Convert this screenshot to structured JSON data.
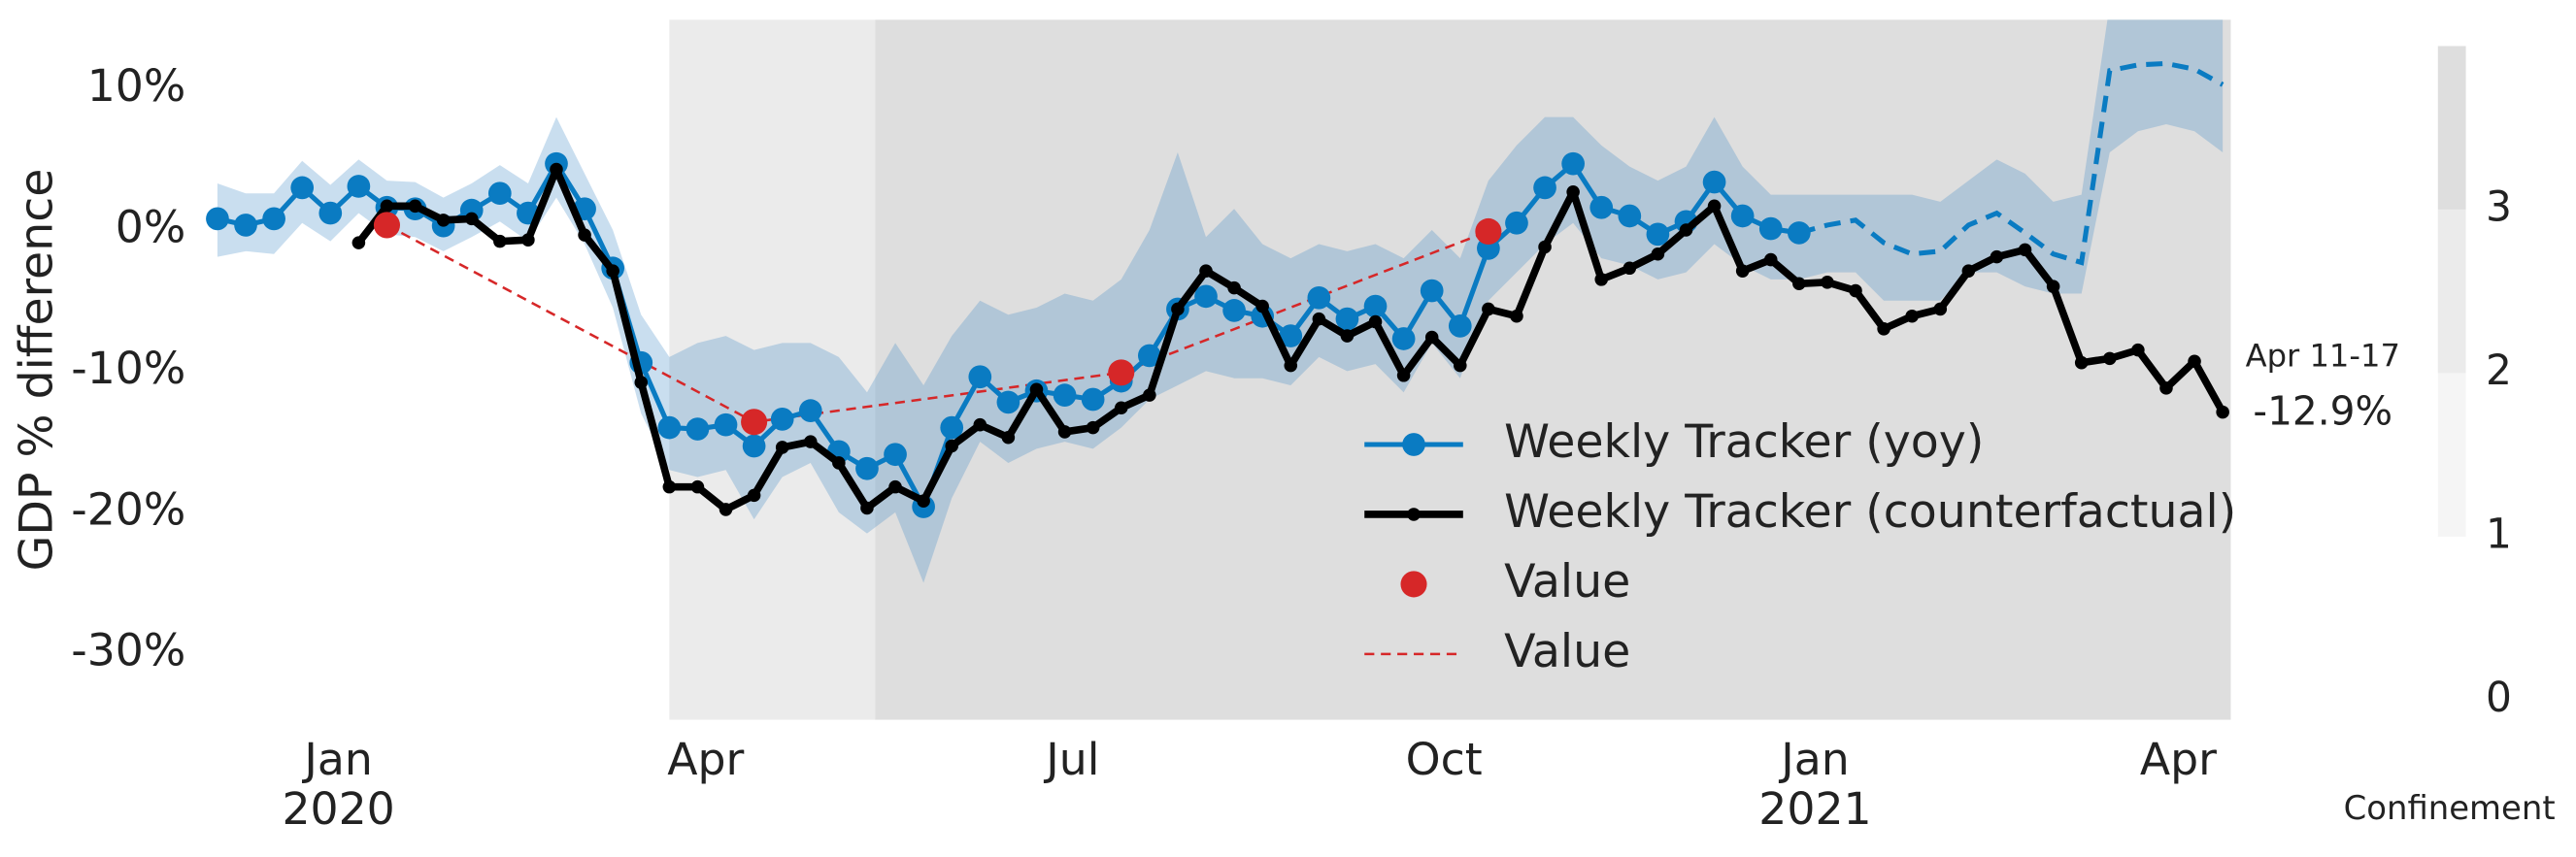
{
  "chart_data": {
    "type": "line",
    "ylabel": "GDP % difference",
    "x": [
      "2019-12-02",
      "2019-12-09",
      "2019-12-16",
      "2019-12-23",
      "2019-12-30",
      "2020-01-06",
      "2020-01-13",
      "2020-01-20",
      "2020-01-27",
      "2020-02-03",
      "2020-02-10",
      "2020-02-17",
      "2020-02-24",
      "2020-03-02",
      "2020-03-09",
      "2020-03-16",
      "2020-03-23",
      "2020-03-30",
      "2020-04-06",
      "2020-04-13",
      "2020-04-20",
      "2020-04-27",
      "2020-05-04",
      "2020-05-11",
      "2020-05-18",
      "2020-05-25",
      "2020-06-01",
      "2020-06-08",
      "2020-06-15",
      "2020-06-22",
      "2020-06-29",
      "2020-07-06",
      "2020-07-13",
      "2020-07-20",
      "2020-07-27",
      "2020-08-03",
      "2020-08-10",
      "2020-08-17",
      "2020-08-24",
      "2020-08-31",
      "2020-09-07",
      "2020-09-14",
      "2020-09-21",
      "2020-09-28",
      "2020-10-05",
      "2020-10-12",
      "2020-10-19",
      "2020-10-26",
      "2020-11-02",
      "2020-11-09",
      "2020-11-16",
      "2020-11-23",
      "2020-11-30",
      "2020-12-07",
      "2020-12-14",
      "2020-12-21",
      "2020-12-28",
      "2021-01-04",
      "2021-01-11",
      "2021-01-18",
      "2021-01-25",
      "2021-02-01",
      "2021-02-08",
      "2021-02-15",
      "2021-02-22",
      "2021-03-01",
      "2021-03-08",
      "2021-03-15",
      "2021-03-22",
      "2021-03-29",
      "2021-04-05",
      "2021-04-12"
    ],
    "series": [
      {
        "name": "Weekly Tracker (yoy)",
        "color": "#0a7bc2",
        "style": "line-marker",
        "values": [
          0.8,
          0.35,
          0.8,
          3,
          1.2,
          3.1,
          1.6,
          1.5,
          0.3,
          1.4,
          2.6,
          1.2,
          4.7,
          1.5,
          -2.7,
          -9.4,
          -14,
          -14.1,
          -13.8,
          -15.3,
          -13.4,
          -12.8,
          -15.7,
          -16.9,
          -15.9,
          -19.6,
          -14,
          -10.4,
          -12.2,
          -11.4,
          -11.7,
          -12,
          -10.7,
          -8.9,
          -5.6,
          -4.7,
          -5.7,
          -6.1,
          -7.5,
          -4.8,
          -6.3,
          -5.4,
          -7.7,
          -4.3,
          -6.8,
          -1.3,
          0.5,
          3,
          4.7,
          1.6,
          1,
          -0.3,
          0.6,
          3.4,
          1,
          0.1,
          -0.2,
          null,
          null,
          null,
          null,
          null,
          null,
          null,
          null,
          null,
          null,
          null,
          null,
          null,
          null,
          null
        ]
      },
      {
        "name": "Weekly Tracker (counterfactual)",
        "color": "#000000",
        "style": "line-dot",
        "values": [
          null,
          null,
          null,
          null,
          null,
          -0.9,
          1.7,
          1.7,
          0.7,
          0.8,
          -0.8,
          -0.7,
          4.3,
          -0.35,
          -2.9,
          -10.8,
          -18.2,
          -18.2,
          -19.8,
          -18.8,
          -15.4,
          -15,
          -16.5,
          -19.7,
          -18.2,
          -19.2,
          -15.3,
          -13.8,
          -14.7,
          -11.3,
          -14.3,
          -14,
          -12.6,
          -11.7,
          -5.6,
          -2.9,
          -4.1,
          -5.4,
          -9.6,
          -6.3,
          -7.5,
          -6.5,
          -10.3,
          -7.6,
          -9.6,
          -5.6,
          -6.1,
          -1.2,
          2.7,
          -3.5,
          -2.7,
          -1.7,
          0,
          1.7,
          -2.9,
          -2.1,
          -3.8,
          -3.7,
          -4.3,
          -7,
          -6.1,
          -5.6,
          -2.9,
          -1.9,
          -1.4,
          -4,
          -9.4,
          -9.1,
          -8.5,
          -11.2,
          -9.3,
          -12.9
        ]
      },
      {
        "name": "Value",
        "color": "#d62728",
        "style": "marker",
        "x": [
          "2020-01-13",
          "2020-04-13",
          "2020-07-13",
          "2020-10-12"
        ],
        "values": [
          0.35,
          -13.6,
          -10.1,
          -0.1
        ]
      },
      {
        "name": "Value",
        "color": "#d62728",
        "style": "dashed",
        "x": [
          "2020-01-13",
          "2020-04-13",
          "2020-07-13",
          "2020-10-12"
        ],
        "values": [
          0.35,
          -13.6,
          -10.1,
          -0.1
        ]
      }
    ],
    "forecast": {
      "color": "#0a7bc2",
      "values": [
        null,
        null,
        null,
        null,
        null,
        null,
        null,
        null,
        null,
        null,
        null,
        null,
        null,
        null,
        null,
        null,
        null,
        null,
        null,
        null,
        null,
        null,
        null,
        null,
        null,
        null,
        null,
        null,
        null,
        null,
        null,
        null,
        null,
        null,
        null,
        null,
        null,
        null,
        null,
        null,
        null,
        null,
        null,
        null,
        null,
        null,
        null,
        null,
        null,
        null,
        null,
        null,
        null,
        null,
        null,
        null,
        -0.2,
        0.35,
        0.7,
        -0.9,
        -1.7,
        -1.5,
        0.35,
        1.2,
        -0.2,
        -1.7,
        -2.3,
        11.3,
        11.7,
        11.8,
        11.4,
        10.3
      ]
    },
    "band": {
      "color": "#3c88c4",
      "lower": [
        -1.9,
        -1.5,
        -1.7,
        0.5,
        -0.8,
        1.2,
        -0.3,
        -0.5,
        -1.5,
        -0.5,
        0.6,
        -0.8,
        2.3,
        -1,
        -5.5,
        -13,
        -17,
        -17.5,
        -17,
        -20.5,
        -17.5,
        -16.5,
        -20,
        -21.5,
        -20,
        -25,
        -19,
        -15,
        -16.5,
        -15.5,
        -15,
        -15.5,
        -14,
        -12,
        -11,
        -10,
        -10.5,
        -10.5,
        -11,
        -9,
        -10,
        -9.5,
        -11.5,
        -8,
        -10.5,
        -5,
        -3,
        -1,
        0.5,
        -2,
        -2.5,
        -3.5,
        -3,
        -1,
        -2.5,
        -3.5,
        -3.5,
        -3,
        -3,
        -5,
        -5,
        -5,
        -3,
        -3,
        -4,
        -4.5,
        -4.5,
        5.5,
        7,
        7.5,
        7,
        5.5
      ],
      "upper": [
        3.3,
        2.6,
        2.6,
        4.9,
        3.2,
        5,
        3.5,
        3.4,
        2.3,
        3.3,
        4.6,
        3.3,
        8,
        4,
        0,
        -6,
        -9,
        -8,
        -7.5,
        -8.5,
        -8,
        -8,
        -9,
        -11.5,
        -8,
        -11,
        -7.5,
        -5,
        -6,
        -5.5,
        -4.5,
        -5,
        -3.5,
        0,
        5.5,
        -0.5,
        1.5,
        -1,
        -2,
        -1,
        -1.5,
        -1,
        -2,
        0,
        -2,
        3.5,
        6,
        8,
        8,
        6,
        4.5,
        3.5,
        4.5,
        8,
        4.5,
        2.5,
        2.5,
        2.5,
        2.5,
        2.5,
        2.5,
        2,
        3.5,
        5,
        4,
        2,
        2.5,
        16,
        16.5,
        16.5,
        16,
        15
      ]
    },
    "confinement": [
      {
        "start": "2020-03-23",
        "end": "2020-05-13",
        "level": 2
      },
      {
        "start": "2020-05-13",
        "end": "2021-04-14",
        "level": 3
      }
    ],
    "colorbar": {
      "label": "Confinement",
      "lim": [
        0,
        4
      ],
      "ticks": [
        0,
        1,
        2,
        3
      ],
      "levels": [
        {
          "level": 1,
          "color": "#f5f5f5"
        },
        {
          "level": 2,
          "color": "#ebebeb"
        },
        {
          "level": 3,
          "color": "#dedede"
        }
      ]
    },
    "annotation": {
      "x": "2021-04-12",
      "label": "Apr 11-17",
      "value": -12.9,
      "value_label": "-12.9%"
    },
    "xlim": [
      "2019-11-27",
      "2021-04-14"
    ],
    "xticks": [
      {
        "value": "2020-01-01",
        "label": "Jan"
      },
      {
        "value": "2020-04-01",
        "label": "Apr"
      },
      {
        "value": "2020-07-01",
        "label": "Jul"
      },
      {
        "value": "2020-10-01",
        "label": "Oct"
      },
      {
        "value": "2021-01-01",
        "label": "Jan"
      },
      {
        "value": "2021-04-01",
        "label": "Apr"
      }
    ],
    "year_labels": [
      {
        "value": "2020-01-01",
        "label": "2020"
      },
      {
        "value": "2021-01-01",
        "label": "2021"
      }
    ],
    "ylim": [
      -34.7,
      14.9
    ],
    "yticks": [
      {
        "value": 10,
        "label": "10%"
      },
      {
        "value": 0,
        "label": "0%"
      },
      {
        "value": -10,
        "label": "-10%"
      },
      {
        "value": -20,
        "label": "-20%"
      },
      {
        "value": -30,
        "label": "-30%"
      }
    ],
    "grid": false,
    "legend": "lower right"
  }
}
